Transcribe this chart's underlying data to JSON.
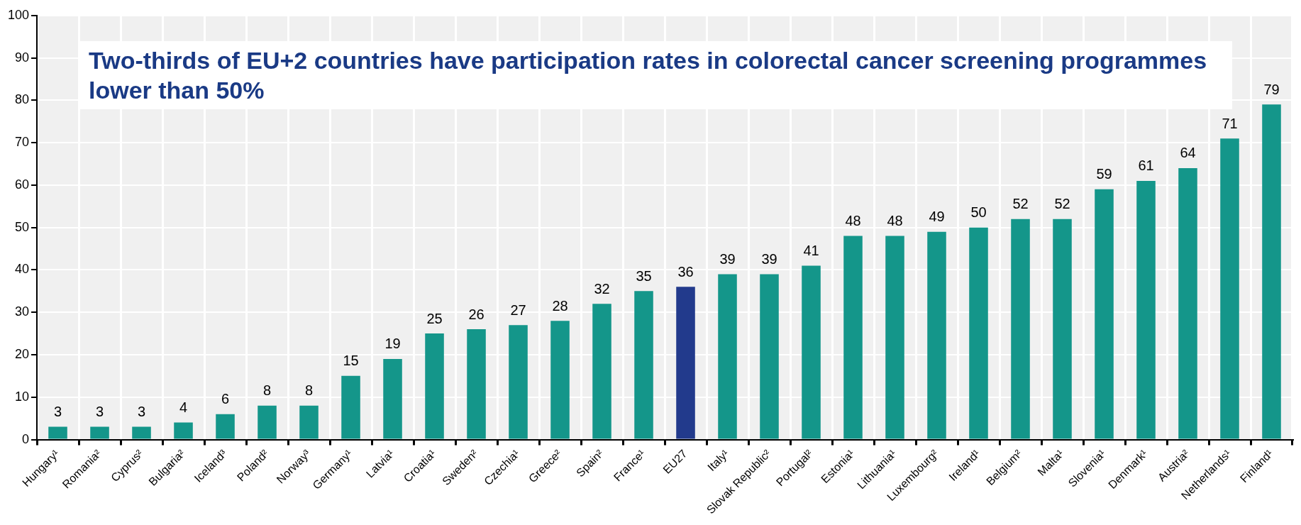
{
  "chart_data": {
    "type": "bar",
    "title": "Two-thirds of EU+2 countries have participation rates in colorectal cancer screening programmes lower than 50%",
    "categories": [
      "Hungary¹",
      "Romania²",
      "Cyprus²",
      "Bulgaria²",
      "Iceland³",
      "Poland²",
      "Norway³",
      "Germany¹",
      "Latvia¹",
      "Croatia¹",
      "Sweden²",
      "Czechia¹",
      "Greece²",
      "Spain²",
      "France¹",
      "EU27",
      "Italy¹",
      "Slovak Republic²",
      "Portugal²",
      "Estonia¹",
      "Lithuania¹",
      "Luxembourg²",
      "Ireland¹",
      "Belgium²",
      "Malta¹",
      "Slovenia¹",
      "Denmark¹",
      "Austria²",
      "Netherlands¹",
      "Finland¹"
    ],
    "values": [
      3,
      3,
      3,
      4,
      6,
      8,
      8,
      15,
      19,
      25,
      26,
      27,
      28,
      32,
      35,
      36,
      39,
      39,
      41,
      48,
      48,
      49,
      50,
      52,
      52,
      59,
      61,
      64,
      71,
      79
    ],
    "colors": [
      "#14968a",
      "#14968a",
      "#14968a",
      "#14968a",
      "#14968a",
      "#14968a",
      "#14968a",
      "#14968a",
      "#14968a",
      "#14968a",
      "#14968a",
      "#14968a",
      "#14968a",
      "#14968a",
      "#14968a",
      "#223a8c",
      "#14968a",
      "#14968a",
      "#14968a",
      "#14968a",
      "#14968a",
      "#14968a",
      "#14968a",
      "#14968a",
      "#14968a",
      "#14968a",
      "#14968a",
      "#14968a",
      "#14968a",
      "#14968a"
    ],
    "ylim": [
      0,
      100
    ],
    "yticks": [
      0,
      10,
      20,
      30,
      40,
      50,
      60,
      70,
      80,
      90,
      100
    ],
    "grid": true,
    "data_labels": true,
    "legend": false
  }
}
